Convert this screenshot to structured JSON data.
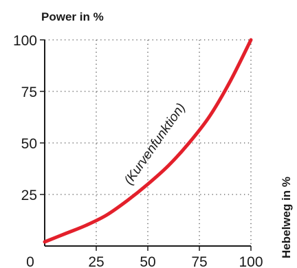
{
  "chart_data": {
    "type": "line",
    "title": "",
    "ylabel": "Power in %",
    "xlabel": "Hebelweg in %",
    "xlim": [
      0,
      100
    ],
    "ylim": [
      0,
      100
    ],
    "x_ticks": [
      "0",
      "25",
      "50",
      "75",
      "100"
    ],
    "y_ticks": [
      "100",
      "75",
      "50",
      "25"
    ],
    "grid": true,
    "annotation": "(Kurvenfunktion)",
    "series": [
      {
        "color": "#e3202b",
        "x": [
          0,
          10,
          20,
          30,
          40,
          50,
          60,
          70,
          80,
          90,
          100
        ],
        "y": [
          2,
          6,
          10,
          15,
          22,
          30,
          39,
          50,
          63,
          80,
          100
        ]
      }
    ]
  }
}
